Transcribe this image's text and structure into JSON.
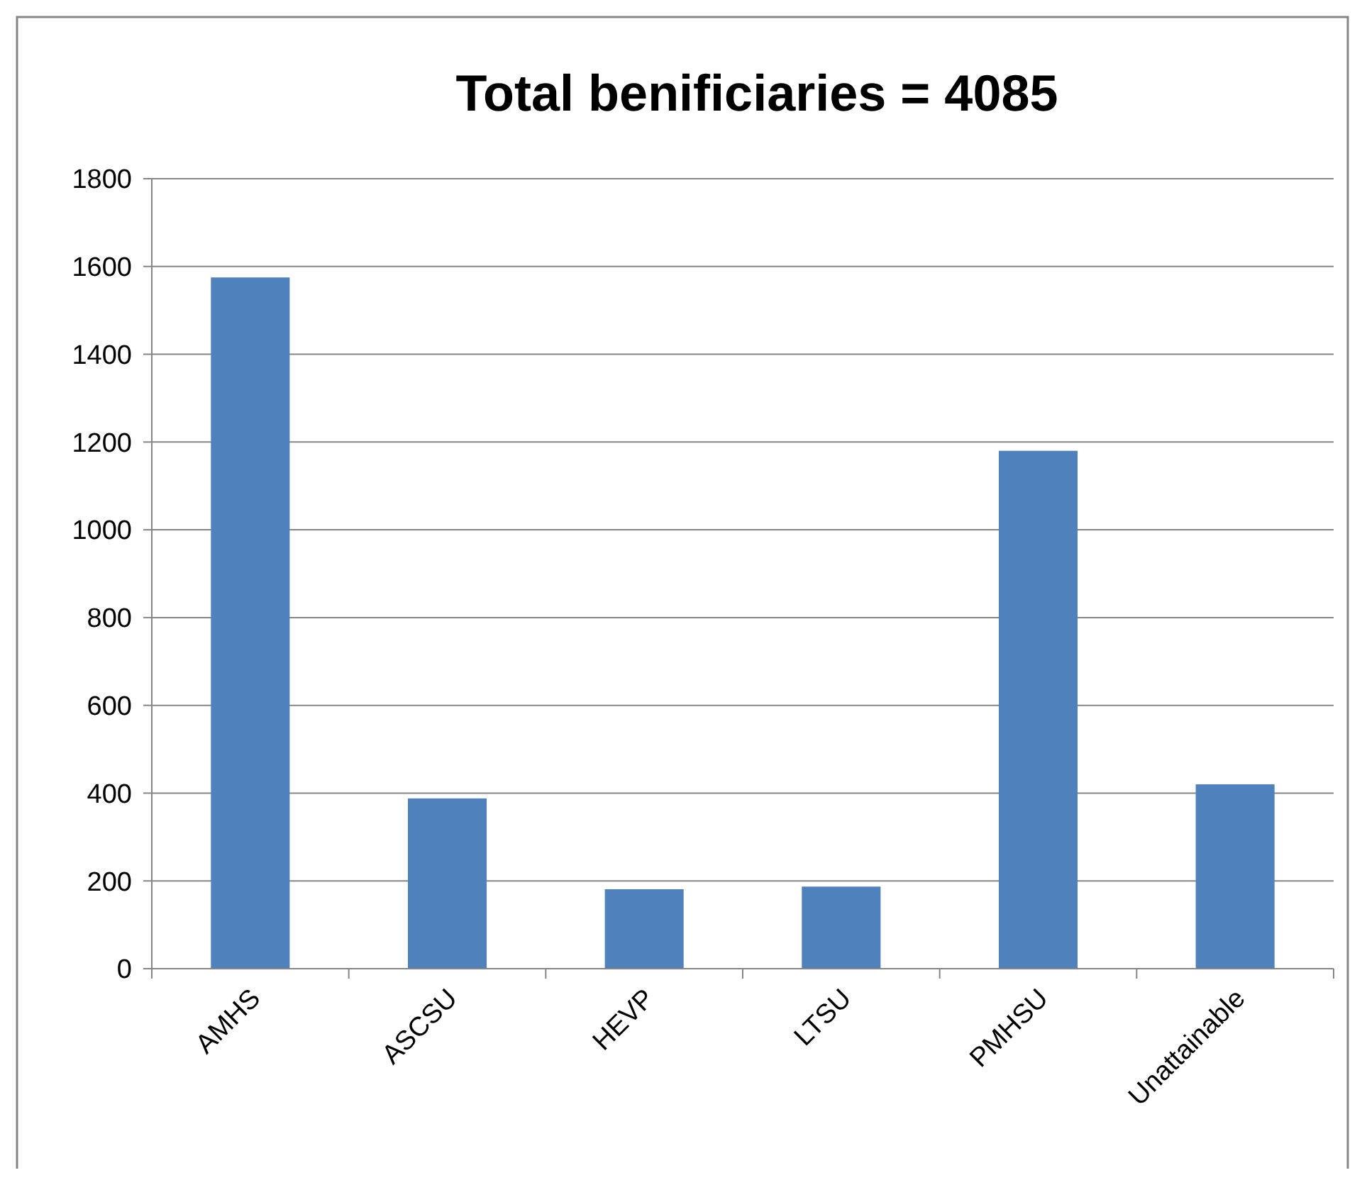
{
  "chart_data": {
    "type": "bar",
    "title": "Total benificiaries = 4085",
    "categories": [
      "AMHS",
      "ASCSU",
      "HEVP",
      "LTSU",
      "PMHSU",
      "Unattainable"
    ],
    "values": [
      1575,
      388,
      181,
      187,
      1180,
      420
    ],
    "color": "#4f81bd",
    "ylim": [
      0,
      1800
    ],
    "yticks": [
      0,
      200,
      400,
      600,
      800,
      1000,
      1200,
      1400,
      1600,
      1800
    ],
    "grid": "y"
  }
}
